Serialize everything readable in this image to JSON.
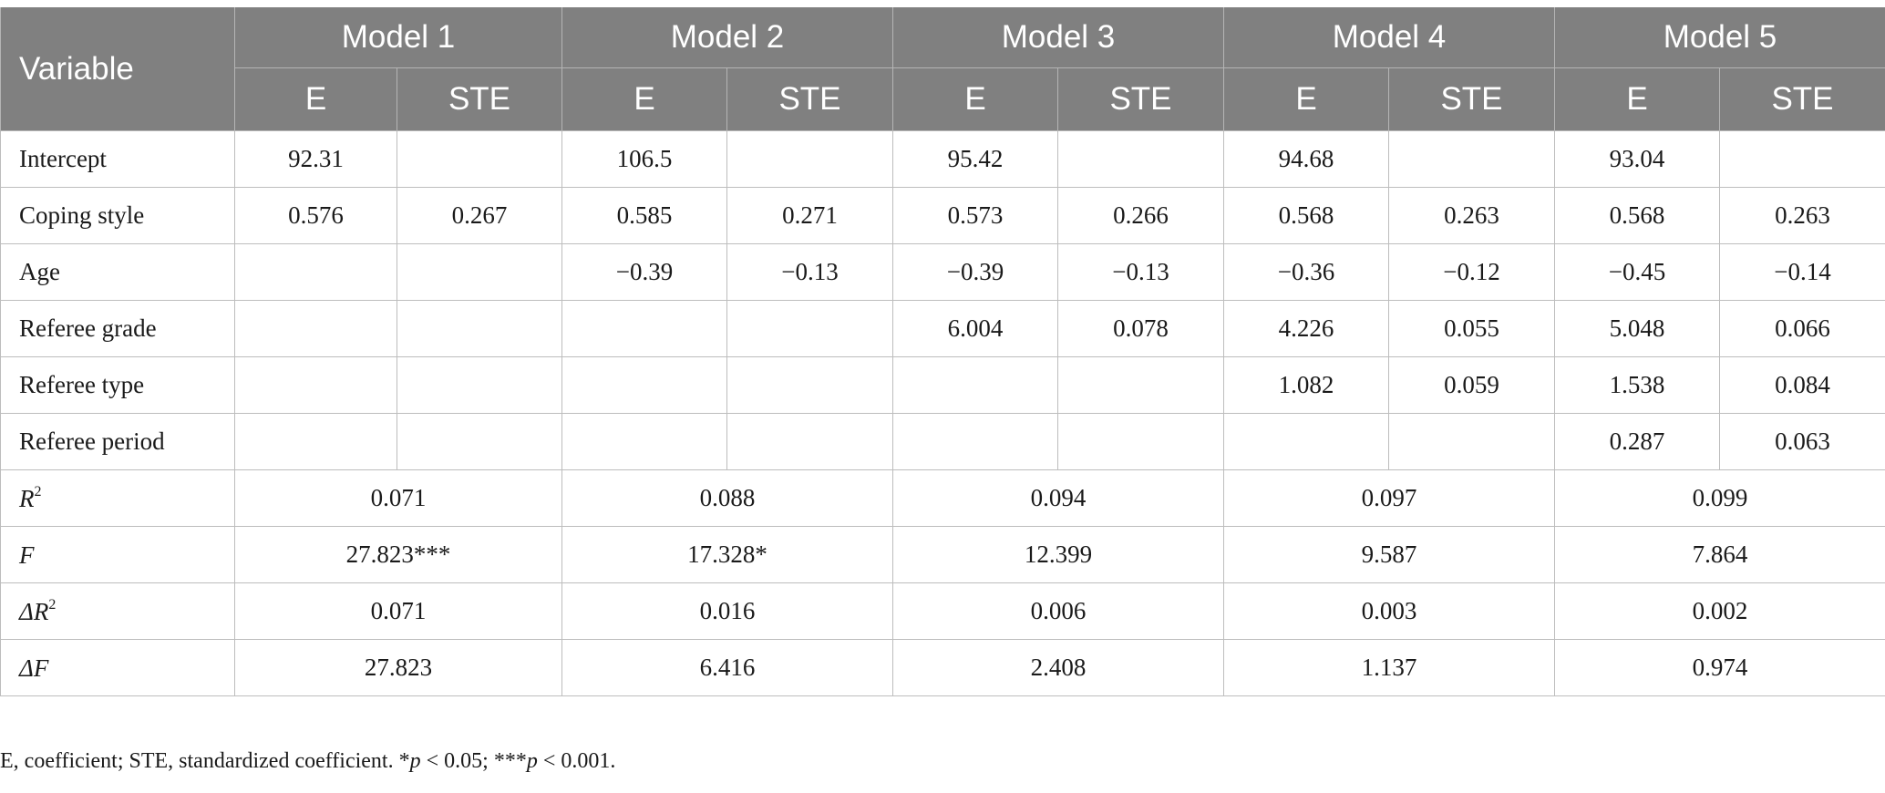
{
  "table": {
    "variable_header": "Variable",
    "models": [
      "Model 1",
      "Model 2",
      "Model 3",
      "Model 4",
      "Model 5"
    ],
    "subheaders": {
      "e": "E",
      "ste": "STE"
    },
    "rows": [
      {
        "label": "Intercept",
        "cells": [
          "92.31",
          "",
          "106.5",
          "",
          "95.42",
          "",
          "94.68",
          "",
          "93.04",
          ""
        ]
      },
      {
        "label": "Coping style",
        "cells": [
          "0.576",
          "0.267",
          "0.585",
          "0.271",
          "0.573",
          "0.266",
          "0.568",
          "0.263",
          "0.568",
          "0.263"
        ]
      },
      {
        "label": "Age",
        "cells": [
          "",
          "",
          "−0.39",
          "−0.13",
          "−0.39",
          "−0.13",
          "−0.36",
          "−0.12",
          "−0.45",
          "−0.14"
        ]
      },
      {
        "label": "Referee grade",
        "cells": [
          "",
          "",
          "",
          "",
          "6.004",
          "0.078",
          "4.226",
          "0.055",
          "5.048",
          "0.066"
        ]
      },
      {
        "label": "Referee type",
        "cells": [
          "",
          "",
          "",
          "",
          "",
          "",
          "1.082",
          "0.059",
          "1.538",
          "0.084"
        ]
      },
      {
        "label": "Referee period",
        "cells": [
          "",
          "",
          "",
          "",
          "",
          "",
          "",
          "",
          "0.287",
          "0.063"
        ]
      }
    ],
    "stat_rows": [
      {
        "prefix": "",
        "letter": "R",
        "sup": "2",
        "values": [
          "0.071",
          "0.088",
          "0.094",
          "0.097",
          "0.099"
        ]
      },
      {
        "prefix": "",
        "letter": "F",
        "sup": "",
        "values": [
          "27.823***",
          "17.328*",
          "12.399",
          "9.587",
          "7.864"
        ]
      },
      {
        "prefix": "Δ",
        "letter": "R",
        "sup": "2",
        "values": [
          "0.071",
          "0.016",
          "0.006",
          "0.003",
          "0.002"
        ]
      },
      {
        "prefix": "Δ",
        "letter": "F",
        "sup": "",
        "values": [
          "27.823",
          "6.416",
          "2.408",
          "1.137",
          "0.974"
        ]
      }
    ]
  },
  "footnote": {
    "lead": "E, coefficient; STE, standardized coefficient. *",
    "p1": "p",
    "t1": " < 0.05; ***",
    "p2": "p",
    "t2": " < 0.001."
  }
}
